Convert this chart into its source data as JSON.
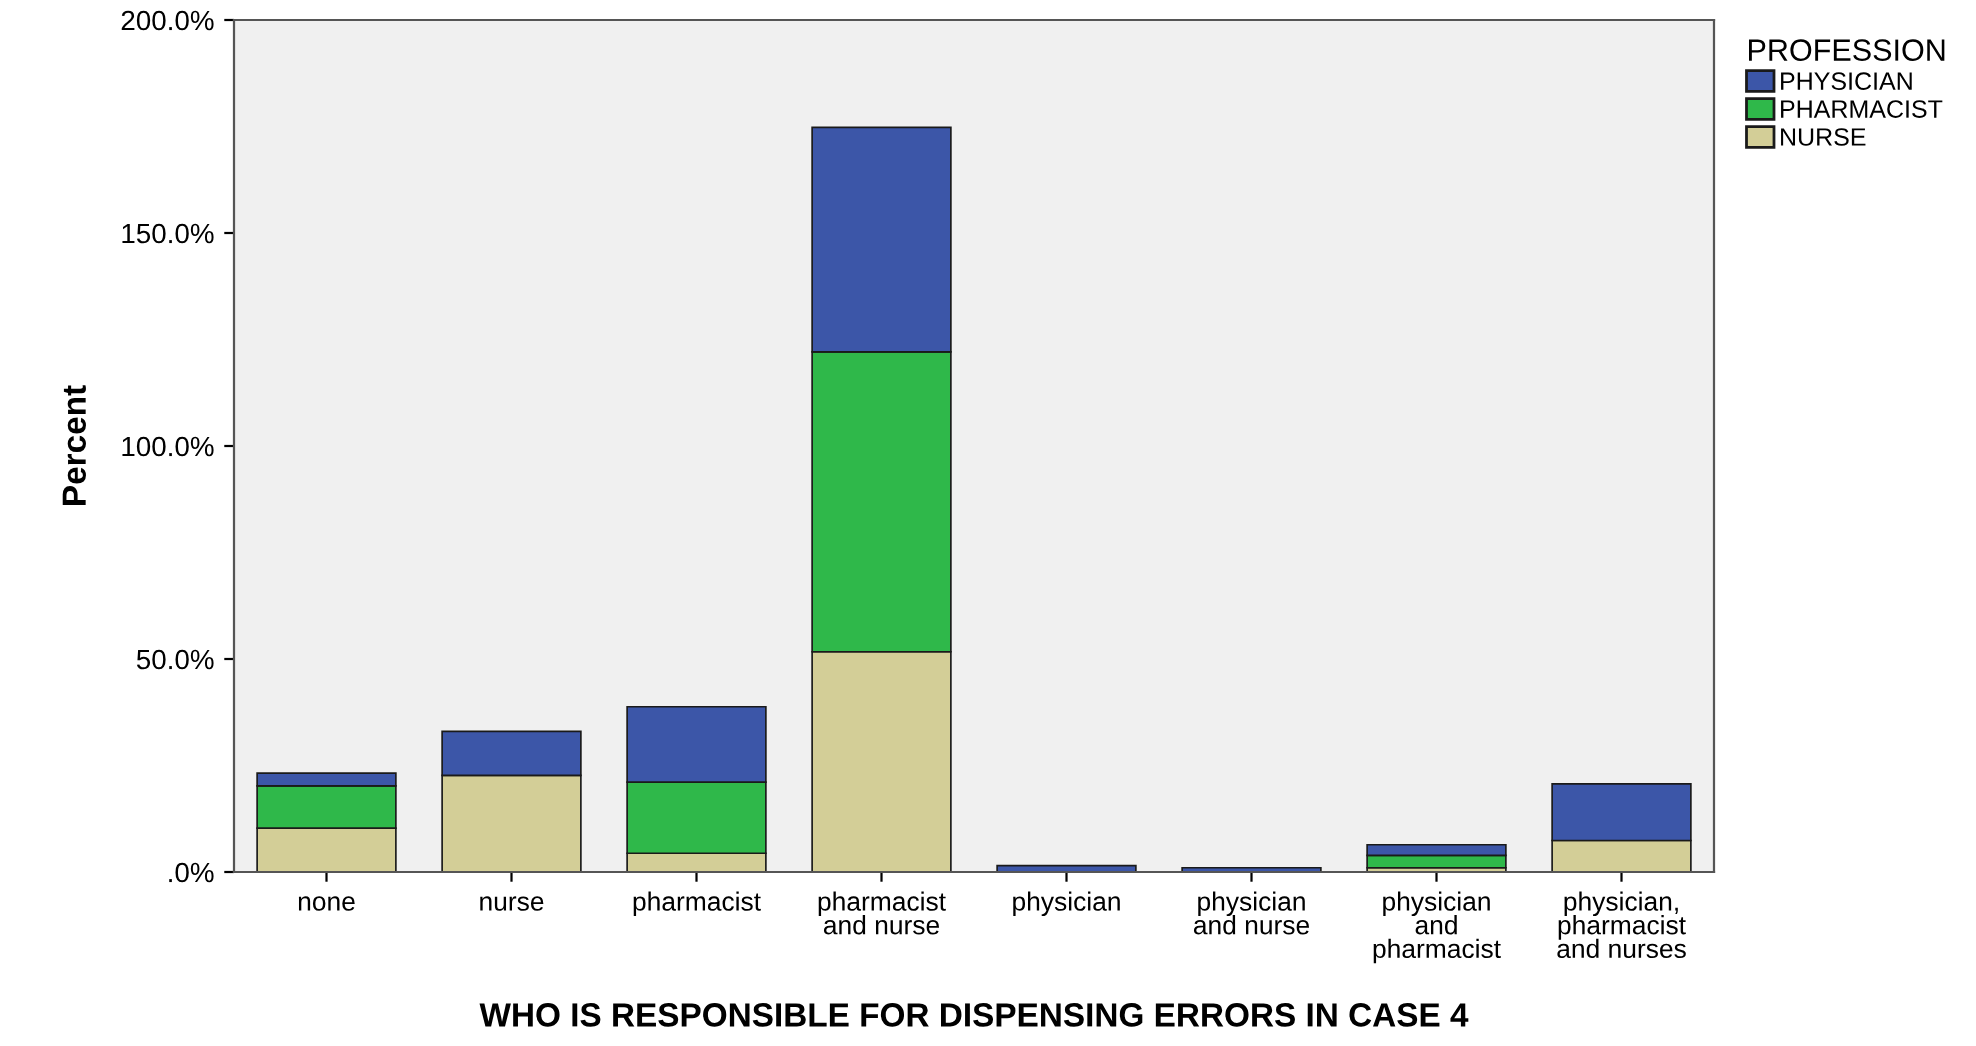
{
  "chart_data": {
    "type": "bar",
    "stacked": true,
    "xlabel": "WHO IS RESPONSIBLE FOR DISPENSING ERRORS IN CASE 4",
    "ylabel": "Percent",
    "legend_title": "PROFESSION",
    "legend": "top right",
    "categories": [
      "none",
      "nurse",
      "pharmacist",
      "pharmacist\nand nurse",
      "physician",
      "physician\nand nurse",
      "physician\nand\npharmacist",
      "physician,\npharmacist\nand nurses"
    ],
    "series": [
      {
        "name": "NURSE",
        "color": "#d3ce97",
        "values": [
          10.3,
          22.7,
          4.4,
          51.7,
          null,
          null,
          1.0,
          7.4
        ]
      },
      {
        "name": "PHARMACIST",
        "color": "#2fb84a",
        "values": [
          9.9,
          null,
          16.7,
          70.4,
          null,
          null,
          2.9,
          null
        ]
      },
      {
        "name": "PHYSICIAN",
        "color": "#3c56a8",
        "values": [
          3.0,
          10.3,
          17.7,
          52.7,
          1.5,
          1.0,
          2.5,
          13.3
        ]
      }
    ],
    "ylim": [
      0,
      200
    ],
    "yticks": [
      {
        "value": 0,
        "label": ".0%"
      },
      {
        "value": 50,
        "label": "50.0%"
      },
      {
        "value": 100,
        "label": "100.0%"
      },
      {
        "value": 150,
        "label": "150.0%"
      },
      {
        "value": 200,
        "label": "200.0%"
      }
    ],
    "grid": false
  }
}
